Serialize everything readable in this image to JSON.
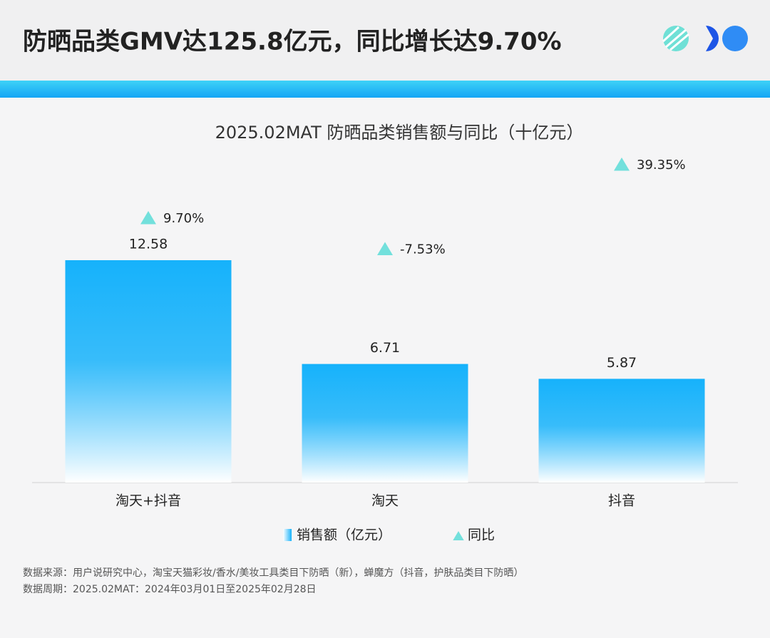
{
  "header": {
    "title": "防晒品类GMV达125.8亿元，同比增长达9.70%"
  },
  "chart_data": {
    "type": "bar",
    "title": "2025.02MAT 防晒品类销售额与同比（十亿元）",
    "categories": [
      "淘天+抖音",
      "淘天",
      "抖音"
    ],
    "series": [
      {
        "name": "销售额（亿元）",
        "color": "#16b2fb",
        "values": [
          12.58,
          6.71,
          5.87
        ]
      },
      {
        "name": "同比",
        "color": "#72e0dc",
        "values": [
          9.7,
          -7.53,
          39.35
        ],
        "value_labels": [
          "9.70%",
          "-7.53%",
          "39.35%"
        ],
        "axis": "y2"
      }
    ]
  },
  "footer": {
    "notes": [
      "数据来源：用户说研究中心，淘宝天猫彩妆/香水/美妆工具类目下防晒（新），蝉魔方（抖音，护肤品类目下防晒）",
      "数据周期：2025.02MAT：2024年03月01日至2025年02月28日"
    ]
  }
}
